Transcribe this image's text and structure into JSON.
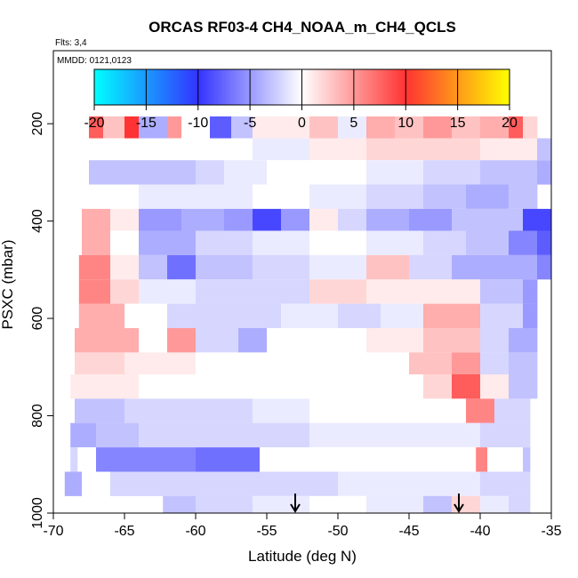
{
  "chart_data": {
    "type": "heatmap",
    "title": "ORCAS RF03-4 CH4_NOAA_m_CH4_QCLS",
    "subtitle": "Flts: 3,4",
    "annotation": "MMDD: 0121,0123",
    "xlabel": "Latitude (deg N)",
    "ylabel": "PSXC (mbar)",
    "xlim": [
      -70,
      -35
    ],
    "ylim": [
      1000,
      50
    ],
    "y_reversed": true,
    "x_ticks": [
      -70,
      -65,
      -60,
      -55,
      -50,
      -45,
      -40,
      -35
    ],
    "y_ticks": [
      200,
      400,
      600,
      800,
      1000
    ],
    "colorbar": {
      "range": [
        -20,
        20
      ],
      "ticks": [
        -20,
        -15,
        -10,
        -5,
        0,
        5,
        10,
        15,
        20
      ],
      "colors": [
        "#00ffff",
        "#3333ff",
        "#ffffff",
        "#ff3333",
        "#ffff00"
      ]
    },
    "arrows_at_latitude": [
      -53,
      -41.5
    ],
    "bands": [
      {
        "p_top": 185,
        "p_bot": 230,
        "segments": [
          [
            -67.5,
            -66.5,
            8
          ],
          [
            -66.5,
            -65,
            3
          ],
          [
            -65,
            -64,
            10
          ],
          [
            -64,
            -62,
            -4
          ],
          [
            -62,
            -61,
            5
          ],
          [
            -61,
            -59,
            0
          ],
          [
            -59,
            -57.5,
            -8
          ],
          [
            -57.5,
            -56,
            -3
          ],
          [
            -56,
            -54,
            1
          ],
          [
            -54,
            -52,
            1
          ],
          [
            -52,
            -50,
            3
          ],
          [
            -50,
            -48,
            -1
          ],
          [
            -48,
            -46,
            4
          ],
          [
            -46,
            -44,
            3
          ],
          [
            -44,
            -42,
            5
          ],
          [
            -42,
            -40,
            3
          ],
          [
            -40,
            -38,
            4
          ],
          [
            -38,
            -37,
            8
          ],
          [
            -37,
            -36,
            2
          ]
        ]
      },
      {
        "p_top": 230,
        "p_bot": 275,
        "segments": [
          [
            -60,
            -56,
            0
          ],
          [
            -56,
            -52,
            -1
          ],
          [
            -52,
            -48,
            1
          ],
          [
            -48,
            -44,
            2
          ],
          [
            -44,
            -40,
            2
          ],
          [
            -40,
            -36,
            1
          ],
          [
            -36,
            -35,
            -3
          ]
        ]
      },
      {
        "p_top": 275,
        "p_bot": 325,
        "segments": [
          [
            -67.5,
            -64,
            -3
          ],
          [
            -64,
            -60,
            -3
          ],
          [
            -60,
            -58,
            -2
          ],
          [
            -58,
            -55,
            -1
          ],
          [
            -55,
            -52,
            0
          ],
          [
            -52,
            -48,
            0
          ],
          [
            -48,
            -44,
            -1
          ],
          [
            -44,
            -40,
            -2
          ],
          [
            -40,
            -36,
            -3
          ],
          [
            -36,
            -35,
            -4
          ]
        ]
      },
      {
        "p_top": 325,
        "p_bot": 375,
        "segments": [
          [
            -67.5,
            -64,
            0
          ],
          [
            -64,
            -60,
            -1
          ],
          [
            -60,
            -56,
            -1
          ],
          [
            -56,
            -52,
            0
          ],
          [
            -52,
            -48,
            -1
          ],
          [
            -48,
            -44,
            -2
          ],
          [
            -44,
            -41,
            -3
          ],
          [
            -41,
            -38,
            -4
          ],
          [
            -38,
            -36,
            -3
          ]
        ]
      },
      {
        "p_top": 375,
        "p_bot": 420,
        "segments": [
          [
            -68,
            -66,
            4
          ],
          [
            -66,
            -64,
            1
          ],
          [
            -64,
            -61,
            -5
          ],
          [
            -61,
            -58,
            -4
          ],
          [
            -58,
            -56,
            -5
          ],
          [
            -56,
            -54,
            -9
          ],
          [
            -54,
            -52,
            -5
          ],
          [
            -52,
            -50,
            1
          ],
          [
            -50,
            -48,
            -2
          ],
          [
            -48,
            -45,
            -4
          ],
          [
            -45,
            -42,
            -5
          ],
          [
            -42,
            -40,
            -3
          ],
          [
            -40,
            -37,
            -3
          ],
          [
            -37,
            -35,
            -9
          ]
        ]
      },
      {
        "p_top": 420,
        "p_bot": 470,
        "segments": [
          [
            -68,
            -66,
            4
          ],
          [
            -66,
            -64,
            0
          ],
          [
            -64,
            -60,
            -4
          ],
          [
            -60,
            -56,
            -2
          ],
          [
            -56,
            -52,
            -1
          ],
          [
            -52,
            -48,
            0
          ],
          [
            -48,
            -44,
            -1
          ],
          [
            -44,
            -41,
            -2
          ],
          [
            -41,
            -38,
            -3
          ],
          [
            -38,
            -36,
            -6
          ],
          [
            -36,
            -35,
            -8
          ]
        ]
      },
      {
        "p_top": 470,
        "p_bot": 520,
        "segments": [
          [
            -68.2,
            -66,
            6
          ],
          [
            -66,
            -64,
            1
          ],
          [
            -64,
            -62,
            -3
          ],
          [
            -62,
            -60,
            -7
          ],
          [
            -60,
            -56,
            -3
          ],
          [
            -56,
            -52,
            -2
          ],
          [
            -52,
            -48,
            -1
          ],
          [
            -48,
            -45,
            3
          ],
          [
            -45,
            -42,
            -2
          ],
          [
            -42,
            -39,
            -4
          ],
          [
            -39,
            -36,
            -4
          ],
          [
            -36,
            -35,
            -6
          ]
        ]
      },
      {
        "p_top": 520,
        "p_bot": 570,
        "segments": [
          [
            -68.2,
            -66,
            6
          ],
          [
            -66,
            -64,
            2
          ],
          [
            -64,
            -60,
            -1
          ],
          [
            -60,
            -56,
            -2
          ],
          [
            -56,
            -52,
            -2
          ],
          [
            -52,
            -48,
            2
          ],
          [
            -48,
            -44,
            1
          ],
          [
            -44,
            -40,
            1
          ],
          [
            -40,
            -37,
            -3
          ],
          [
            -37,
            -36,
            -5
          ]
        ]
      },
      {
        "p_top": 570,
        "p_bot": 620,
        "segments": [
          [
            -68.2,
            -65,
            4
          ],
          [
            -65,
            -62,
            0
          ],
          [
            -62,
            -58,
            -2
          ],
          [
            -58,
            -54,
            -2
          ],
          [
            -54,
            -50,
            -1
          ],
          [
            -50,
            -47,
            -2
          ],
          [
            -47,
            -44,
            -1
          ],
          [
            -44,
            -40,
            4
          ],
          [
            -40,
            -37,
            -2
          ],
          [
            -37,
            -36,
            -5
          ]
        ]
      },
      {
        "p_top": 620,
        "p_bot": 670,
        "segments": [
          [
            -68.5,
            -64,
            4
          ],
          [
            -64,
            -62,
            0
          ],
          [
            -62,
            -60,
            5
          ],
          [
            -60,
            -57,
            -2
          ],
          [
            -57,
            -55,
            -4
          ],
          [
            -55,
            -52,
            0
          ],
          [
            -52,
            -48,
            0
          ],
          [
            -48,
            -44,
            1
          ],
          [
            -44,
            -40,
            3
          ],
          [
            -40,
            -38,
            -2
          ],
          [
            -38,
            -36,
            -4
          ]
        ]
      },
      {
        "p_top": 670,
        "p_bot": 715,
        "segments": [
          [
            -68.5,
            -65,
            2
          ],
          [
            -65,
            -60,
            1
          ],
          [
            -60,
            -56,
            0
          ],
          [
            -56,
            -52,
            0
          ],
          [
            -52,
            -48,
            0
          ],
          [
            -48,
            -45,
            0
          ],
          [
            -45,
            -42,
            3
          ],
          [
            -42,
            -40,
            5
          ],
          [
            -40,
            -38,
            -2
          ],
          [
            -38,
            -36,
            -3
          ]
        ]
      },
      {
        "p_top": 715,
        "p_bot": 765,
        "segments": [
          [
            -68.8,
            -64,
            1
          ],
          [
            -64,
            -60,
            0
          ],
          [
            -60,
            -56,
            0
          ],
          [
            -56,
            -52,
            0
          ],
          [
            -52,
            -48,
            0
          ],
          [
            -48,
            -44,
            0
          ],
          [
            -44,
            -42,
            2
          ],
          [
            -42,
            -40,
            8
          ],
          [
            -40,
            -38,
            1
          ],
          [
            -38,
            -36,
            -3
          ]
        ]
      },
      {
        "p_top": 765,
        "p_bot": 815,
        "segments": [
          [
            -68.5,
            -65,
            -3
          ],
          [
            -65,
            -60,
            -2
          ],
          [
            -60,
            -56,
            -2
          ],
          [
            -56,
            -52,
            -1
          ],
          [
            -52,
            -48,
            0
          ],
          [
            -48,
            -44,
            0
          ],
          [
            -44,
            -41,
            0
          ],
          [
            -41,
            -39,
            6
          ],
          [
            -39,
            -36.5,
            -2
          ]
        ]
      },
      {
        "p_top": 815,
        "p_bot": 865,
        "segments": [
          [
            -68.8,
            -67,
            -4
          ],
          [
            -67,
            -64,
            -3
          ],
          [
            -64,
            -60,
            -2
          ],
          [
            -60,
            -56,
            -2
          ],
          [
            -56,
            -52,
            -2
          ],
          [
            -52,
            -48,
            -1
          ],
          [
            -48,
            -44,
            -1
          ],
          [
            -44,
            -40,
            -1
          ],
          [
            -40,
            -37,
            -2
          ],
          [
            -37,
            -36.5,
            -2
          ]
        ]
      },
      {
        "p_top": 865,
        "p_bot": 915,
        "segments": [
          [
            -68.8,
            -68.3,
            -2
          ],
          [
            -68.3,
            -67,
            0
          ],
          [
            -67,
            -64,
            -6
          ],
          [
            -64,
            -60,
            -6
          ],
          [
            -60,
            -55.5,
            -7
          ],
          [
            -55.5,
            -51,
            0
          ],
          [
            -51,
            -47,
            0
          ],
          [
            -47,
            -44,
            0
          ],
          [
            -44,
            -40.3,
            0
          ],
          [
            -40.3,
            -39.5,
            6
          ],
          [
            -39.5,
            -37,
            0
          ],
          [
            -37,
            -36.5,
            -3
          ]
        ]
      },
      {
        "p_top": 915,
        "p_bot": 965,
        "segments": [
          [
            -69.2,
            -68,
            -4
          ],
          [
            -68,
            -66,
            0
          ],
          [
            -66,
            -62,
            -2
          ],
          [
            -62,
            -58,
            -2
          ],
          [
            -58,
            -54,
            -2
          ],
          [
            -54,
            -50,
            -2
          ],
          [
            -50,
            -46,
            -1
          ],
          [
            -46,
            -43,
            -1
          ],
          [
            -43,
            -40,
            -1
          ],
          [
            -40,
            -37,
            -2
          ],
          [
            -37,
            -36.5,
            -2
          ]
        ]
      },
      {
        "p_top": 965,
        "p_bot": 1000,
        "segments": [
          [
            -62.3,
            -60,
            -3
          ],
          [
            -60,
            -56,
            -2
          ],
          [
            -56,
            -52,
            -1
          ],
          [
            -52,
            -48,
            0
          ],
          [
            -48,
            -44,
            -1
          ],
          [
            -44,
            -42,
            -3
          ],
          [
            -42,
            -40,
            2
          ],
          [
            -40,
            -38,
            -1
          ],
          [
            -38,
            -36.5,
            -2
          ]
        ]
      }
    ]
  }
}
